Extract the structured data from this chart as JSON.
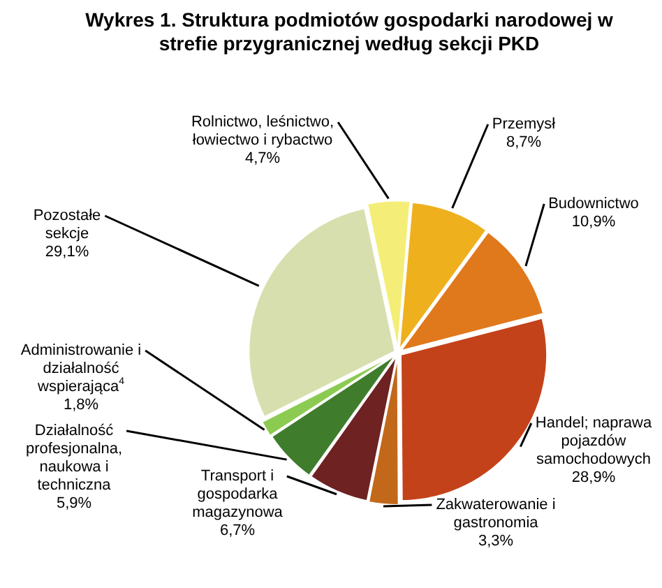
{
  "chart_data": {
    "type": "pie",
    "title": "Wykres 1. Struktura podmiotów gospodarki narodowej w strefie przygranicznej według sekcji PKD",
    "categories": [
      "Rolnictwo, leśnictwo, łowiectwo i rybactwo",
      "Przemysł",
      "Budownictwo",
      "Handel; naprawa pojazdów samochodowych",
      "Zakwaterowanie i gastronomia",
      "Transport i gospodarka magazynowa",
      "Działalność profesjonalna, naukowa i techniczna",
      "Administrowanie i działalność wspierająca$^{4}$",
      "Pozostałe sekcje"
    ],
    "values": [
      4.7,
      8.7,
      10.9,
      28.9,
      3.3,
      6.7,
      5.9,
      1.8,
      29.1
    ],
    "value_labels": [
      "4,7%",
      "8,7%",
      "10,9%",
      "28,9%",
      "3,3%",
      "6,7%",
      "5,9%",
      "1,8%",
      "29,1%"
    ],
    "colors": [
      "#f4ee78",
      "#efb01e",
      "#e0781c",
      "#c4421a",
      "#c2681a",
      "#6e2222",
      "#3f7d2c",
      "#8ccb52",
      "#d7dfae"
    ],
    "legend": false
  }
}
